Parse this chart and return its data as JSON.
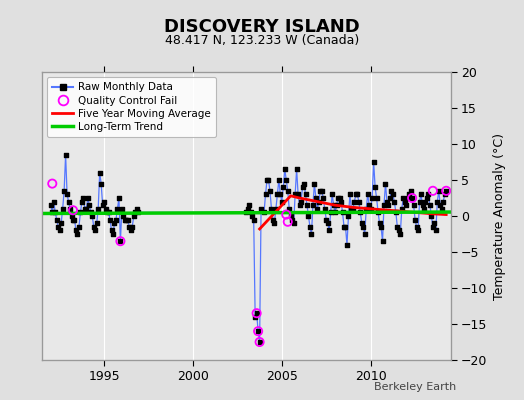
{
  "title": "DISCOVERY ISLAND",
  "subtitle": "48.417 N, 123.233 W (Canada)",
  "ylabel": "Temperature Anomaly (°C)",
  "watermark": "Berkeley Earth",
  "ylim": [
    -20,
    20
  ],
  "xlim": [
    1991.5,
    2014.5
  ],
  "yticks": [
    -20,
    -15,
    -10,
    -5,
    0,
    5,
    10,
    15,
    20
  ],
  "xticks": [
    1995,
    2000,
    2005,
    2010
  ],
  "fig_bg_color": "#e0e0e0",
  "plot_bg_color": "#e8e8e8",
  "grid_color": "#ffffff",
  "raw_color": "#5577ff",
  "dot_color": "black",
  "qc_color": "magenta",
  "moving_avg_color": "red",
  "trend_color": "#00cc00",
  "raw_monthly": [
    [
      1992.0,
      1.5
    ],
    [
      1992.083,
      0.5
    ],
    [
      1992.167,
      2.0
    ],
    [
      1992.25,
      0.5
    ],
    [
      1992.333,
      -0.5
    ],
    [
      1992.417,
      -1.5
    ],
    [
      1992.5,
      -2.0
    ],
    [
      1992.583,
      -1.0
    ],
    [
      1992.667,
      1.0
    ],
    [
      1992.75,
      3.5
    ],
    [
      1992.833,
      8.5
    ],
    [
      1992.917,
      3.0
    ],
    [
      1993.0,
      2.0
    ],
    [
      1993.083,
      1.0
    ],
    [
      1993.167,
      0.0
    ],
    [
      1993.25,
      -0.5
    ],
    [
      1993.333,
      -0.5
    ],
    [
      1993.417,
      -2.0
    ],
    [
      1993.5,
      -2.5
    ],
    [
      1993.583,
      -1.5
    ],
    [
      1993.667,
      0.5
    ],
    [
      1993.75,
      2.0
    ],
    [
      1993.833,
      2.5
    ],
    [
      1993.917,
      1.0
    ],
    [
      1994.0,
      1.0
    ],
    [
      1994.083,
      2.5
    ],
    [
      1994.167,
      1.5
    ],
    [
      1994.25,
      0.5
    ],
    [
      1994.333,
      0.0
    ],
    [
      1994.417,
      -1.5
    ],
    [
      1994.5,
      -2.0
    ],
    [
      1994.583,
      -1.0
    ],
    [
      1994.667,
      1.0
    ],
    [
      1994.75,
      6.0
    ],
    [
      1994.833,
      4.5
    ],
    [
      1994.917,
      1.5
    ],
    [
      1995.0,
      2.0
    ],
    [
      1995.083,
      1.0
    ],
    [
      1995.167,
      0.5
    ],
    [
      1995.25,
      0.5
    ],
    [
      1995.333,
      -0.5
    ],
    [
      1995.417,
      -2.0
    ],
    [
      1995.5,
      -2.5
    ],
    [
      1995.583,
      -1.0
    ],
    [
      1995.667,
      -0.5
    ],
    [
      1995.75,
      1.0
    ],
    [
      1995.833,
      2.5
    ],
    [
      1995.917,
      -3.5
    ],
    [
      1996.0,
      1.0
    ],
    [
      1996.083,
      0.0
    ],
    [
      1996.167,
      -0.5
    ],
    [
      1996.25,
      -0.5
    ],
    [
      1996.333,
      -0.5
    ],
    [
      1996.417,
      -1.5
    ],
    [
      1996.5,
      -2.0
    ],
    [
      1996.583,
      -1.5
    ],
    [
      1996.667,
      0.0
    ],
    [
      1996.75,
      0.5
    ],
    [
      1996.833,
      1.0
    ],
    [
      1996.917,
      0.5
    ],
    [
      2003.0,
      0.5
    ],
    [
      2003.083,
      1.0
    ],
    [
      2003.167,
      1.5
    ],
    [
      2003.25,
      0.5
    ],
    [
      2003.333,
      0.0
    ],
    [
      2003.417,
      -0.5
    ],
    [
      2003.5,
      -14.0
    ],
    [
      2003.583,
      -13.5
    ],
    [
      2003.667,
      -16.0
    ],
    [
      2003.75,
      -17.5
    ],
    [
      2003.833,
      1.0
    ],
    [
      2004.0,
      0.5
    ],
    [
      2004.083,
      3.0
    ],
    [
      2004.167,
      5.0
    ],
    [
      2004.25,
      5.0
    ],
    [
      2004.333,
      3.5
    ],
    [
      2004.417,
      1.0
    ],
    [
      2004.5,
      -0.5
    ],
    [
      2004.583,
      -1.0
    ],
    [
      2004.667,
      1.0
    ],
    [
      2004.75,
      3.0
    ],
    [
      2004.833,
      5.0
    ],
    [
      2004.917,
      3.0
    ],
    [
      2005.0,
      2.0
    ],
    [
      2005.083,
      4.0
    ],
    [
      2005.167,
      6.5
    ],
    [
      2005.25,
      5.0
    ],
    [
      2005.333,
      3.5
    ],
    [
      2005.417,
      1.0
    ],
    [
      2005.5,
      0.0
    ],
    [
      2005.583,
      -0.5
    ],
    [
      2005.667,
      -1.0
    ],
    [
      2005.75,
      3.0
    ],
    [
      2005.833,
      6.5
    ],
    [
      2005.917,
      3.0
    ],
    [
      2006.0,
      1.5
    ],
    [
      2006.083,
      2.0
    ],
    [
      2006.167,
      4.0
    ],
    [
      2006.25,
      4.5
    ],
    [
      2006.333,
      3.0
    ],
    [
      2006.417,
      1.5
    ],
    [
      2006.5,
      0.0
    ],
    [
      2006.583,
      -1.5
    ],
    [
      2006.667,
      -2.5
    ],
    [
      2006.75,
      1.5
    ],
    [
      2006.833,
      4.5
    ],
    [
      2006.917,
      2.5
    ],
    [
      2007.0,
      1.0
    ],
    [
      2007.083,
      2.0
    ],
    [
      2007.167,
      3.5
    ],
    [
      2007.25,
      3.5
    ],
    [
      2007.333,
      2.5
    ],
    [
      2007.417,
      1.0
    ],
    [
      2007.5,
      -0.5
    ],
    [
      2007.583,
      -1.0
    ],
    [
      2007.667,
      -2.0
    ],
    [
      2007.75,
      0.5
    ],
    [
      2007.833,
      3.0
    ],
    [
      2007.917,
      1.5
    ],
    [
      2008.0,
      0.5
    ],
    [
      2008.083,
      1.5
    ],
    [
      2008.167,
      2.5
    ],
    [
      2008.25,
      2.5
    ],
    [
      2008.333,
      2.0
    ],
    [
      2008.417,
      0.5
    ],
    [
      2008.5,
      -1.5
    ],
    [
      2008.583,
      -1.5
    ],
    [
      2008.667,
      -4.0
    ],
    [
      2008.75,
      0.0
    ],
    [
      2008.833,
      3.0
    ],
    [
      2008.917,
      1.0
    ],
    [
      2009.0,
      1.0
    ],
    [
      2009.083,
      2.0
    ],
    [
      2009.167,
      3.0
    ],
    [
      2009.25,
      3.0
    ],
    [
      2009.333,
      2.0
    ],
    [
      2009.417,
      0.5
    ],
    [
      2009.5,
      -1.0
    ],
    [
      2009.583,
      -1.5
    ],
    [
      2009.667,
      -2.5
    ],
    [
      2009.75,
      1.0
    ],
    [
      2009.833,
      3.0
    ],
    [
      2009.917,
      1.5
    ],
    [
      2010.0,
      1.0
    ],
    [
      2010.083,
      2.5
    ],
    [
      2010.167,
      7.5
    ],
    [
      2010.25,
      4.0
    ],
    [
      2010.333,
      2.5
    ],
    [
      2010.417,
      0.5
    ],
    [
      2010.5,
      -1.0
    ],
    [
      2010.583,
      -1.5
    ],
    [
      2010.667,
      -3.5
    ],
    [
      2010.75,
      1.5
    ],
    [
      2010.833,
      4.5
    ],
    [
      2010.917,
      2.0
    ],
    [
      2011.0,
      1.5
    ],
    [
      2011.083,
      2.5
    ],
    [
      2011.167,
      3.5
    ],
    [
      2011.25,
      3.0
    ],
    [
      2011.333,
      2.0
    ],
    [
      2011.417,
      0.5
    ],
    [
      2011.5,
      -1.5
    ],
    [
      2011.583,
      -2.0
    ],
    [
      2011.667,
      -2.5
    ],
    [
      2011.75,
      1.0
    ],
    [
      2011.833,
      2.5
    ],
    [
      2011.917,
      2.0
    ],
    [
      2012.0,
      1.5
    ],
    [
      2012.083,
      2.5
    ],
    [
      2012.167,
      3.0
    ],
    [
      2012.25,
      3.5
    ],
    [
      2012.333,
      2.5
    ],
    [
      2012.417,
      1.5
    ],
    [
      2012.5,
      -0.5
    ],
    [
      2012.583,
      -1.5
    ],
    [
      2012.667,
      -2.0
    ],
    [
      2012.75,
      2.0
    ],
    [
      2012.833,
      3.0
    ],
    [
      2012.917,
      1.5
    ],
    [
      2013.0,
      1.0
    ],
    [
      2013.083,
      2.0
    ],
    [
      2013.167,
      2.5
    ],
    [
      2013.25,
      3.0
    ],
    [
      2013.333,
      1.5
    ],
    [
      2013.417,
      0.0
    ],
    [
      2013.5,
      -1.5
    ],
    [
      2013.583,
      -1.0
    ],
    [
      2013.667,
      -2.0
    ],
    [
      2013.75,
      2.0
    ],
    [
      2013.833,
      3.5
    ],
    [
      2013.917,
      1.5
    ],
    [
      2014.0,
      1.0
    ],
    [
      2014.083,
      2.0
    ],
    [
      2014.167,
      3.0
    ],
    [
      2014.25,
      3.5
    ]
  ],
  "qc_fail_points": [
    [
      1992.083,
      4.5
    ],
    [
      1993.25,
      0.8
    ],
    [
      1995.917,
      -3.5
    ],
    [
      2003.583,
      -13.5
    ],
    [
      2003.667,
      -16.0
    ],
    [
      2003.75,
      -17.5
    ],
    [
      2005.25,
      0.2
    ],
    [
      2005.333,
      -0.8
    ],
    [
      2012.333,
      2.5
    ],
    [
      2013.5,
      3.5
    ],
    [
      2014.25,
      3.5
    ]
  ],
  "moving_avg": [
    [
      2003.75,
      -1.8
    ],
    [
      2005.5,
      2.8
    ],
    [
      2006.0,
      2.5
    ],
    [
      2007.0,
      2.0
    ],
    [
      2008.0,
      1.5
    ],
    [
      2009.0,
      1.2
    ],
    [
      2010.0,
      1.0
    ],
    [
      2011.0,
      0.8
    ],
    [
      2012.0,
      0.6
    ],
    [
      2013.0,
      0.4
    ],
    [
      2013.5,
      0.3
    ],
    [
      2014.25,
      0.2
    ]
  ],
  "trend_x": [
    1991.5,
    2014.5
  ],
  "trend_y": [
    0.35,
    0.55
  ]
}
